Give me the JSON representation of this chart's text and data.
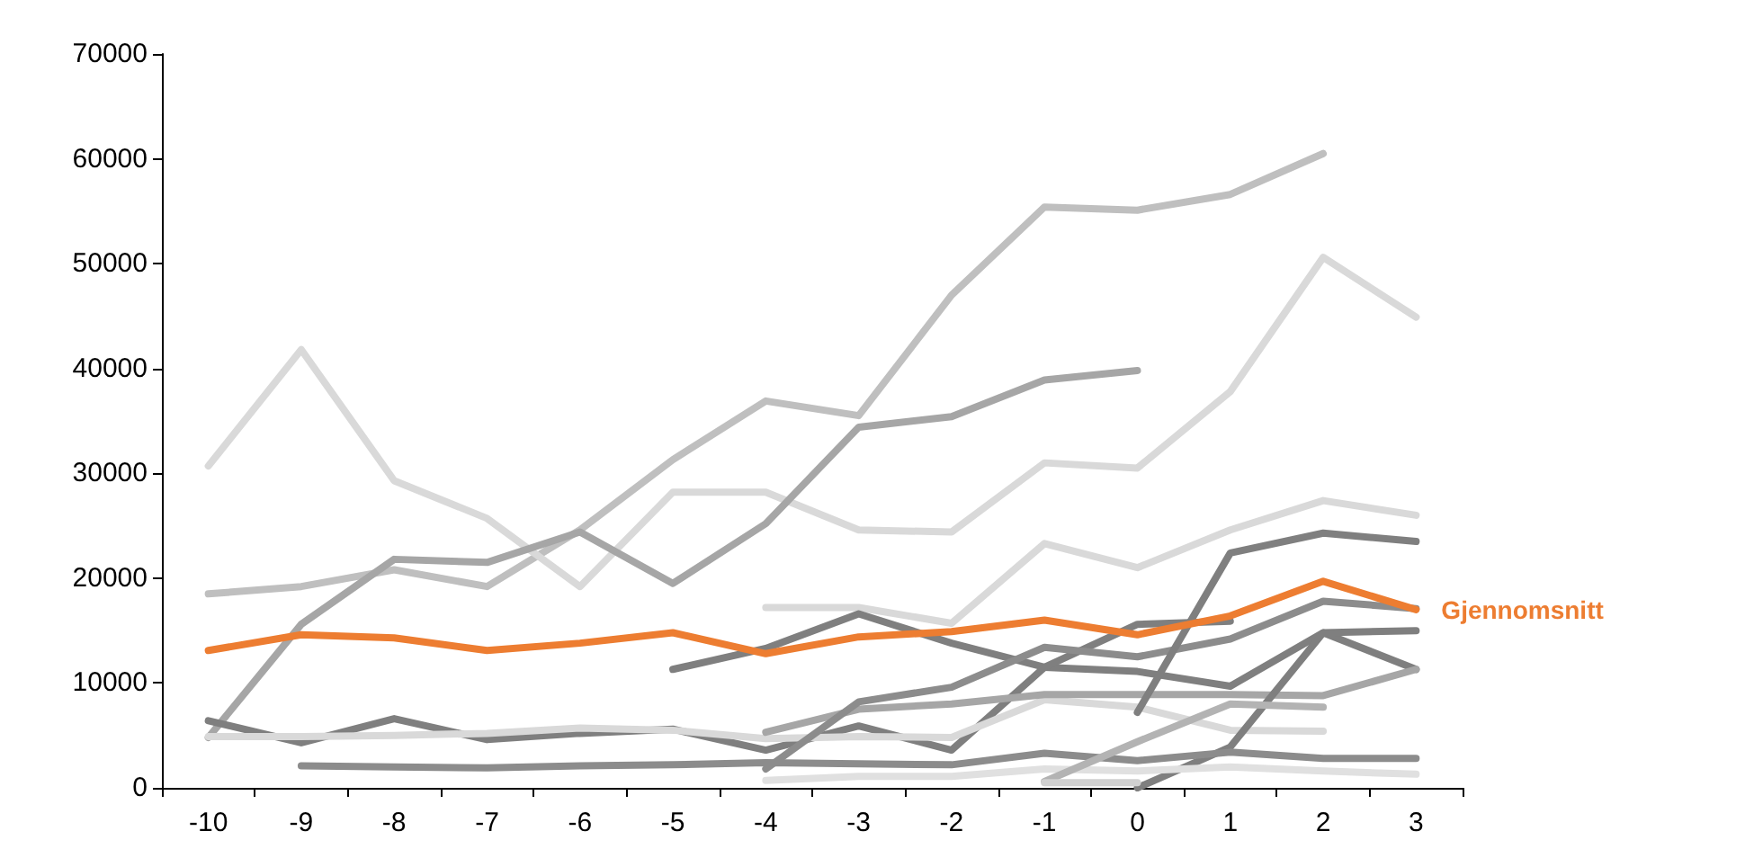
{
  "chart_data": {
    "type": "line",
    "categories": [
      "-10",
      "-9",
      "-8",
      "-7",
      "-6",
      "-5",
      "-4",
      "-3",
      "-2",
      "-1",
      "0",
      "1",
      "2",
      "3"
    ],
    "ylim": [
      0,
      70000
    ],
    "yticks": [
      0,
      10000,
      20000,
      30000,
      40000,
      50000,
      60000,
      70000
    ],
    "grid": false,
    "legend": false,
    "marker": "none",
    "line_style": "solid",
    "series": [
      {
        "color": "#bfbfbf",
        "values": [
          18500,
          19200,
          20800,
          19200,
          24600,
          31300,
          36900,
          35500,
          47000,
          55400,
          55100,
          56600,
          60500,
          null
        ]
      },
      {
        "color": "#d9d9d9",
        "values": [
          30700,
          41800,
          29300,
          25700,
          19200,
          28200,
          28200,
          24600,
          24400,
          31000,
          30500,
          37800,
          50600,
          44900
        ]
      },
      {
        "color": "#a6a6a6",
        "values": [
          4800,
          15600,
          21800,
          21500,
          24400,
          19500,
          25200,
          34400,
          35400,
          38900,
          39800,
          null,
          null,
          null
        ]
      },
      {
        "color": "#d9d9d9",
        "values": [
          null,
          null,
          null,
          null,
          null,
          null,
          17200,
          17200,
          15700,
          23300,
          21000,
          24600,
          27400,
          26000
        ]
      },
      {
        "color": "#7f7f7f",
        "values": [
          null,
          null,
          null,
          null,
          null,
          11300,
          13300,
          16600,
          13800,
          11500,
          11100,
          9700,
          14800,
          11300
        ]
      },
      {
        "color": "#7f7f7f",
        "values": [
          6400,
          4300,
          6600,
          4600,
          5200,
          5600,
          3600,
          5900,
          3600,
          11500,
          15600,
          15900,
          null,
          null
        ]
      },
      {
        "color": "#d9d9d9",
        "values": [
          4900,
          4900,
          5000,
          5200,
          5700,
          5500,
          4700,
          4900,
          4800,
          8400,
          7700,
          5500,
          5400,
          null
        ]
      },
      {
        "color": "#a6a6a6",
        "values": [
          null,
          null,
          null,
          null,
          null,
          null,
          5300,
          7500,
          8000,
          8900,
          8900,
          8900,
          8800,
          11300
        ]
      },
      {
        "color": "#8c8c8c",
        "values": [
          null,
          null,
          null,
          null,
          null,
          null,
          1800,
          8200,
          9600,
          13400,
          12500,
          14200,
          17800,
          17100
        ]
      },
      {
        "color": "#7f7f7f",
        "values": [
          null,
          null,
          null,
          null,
          null,
          null,
          null,
          null,
          null,
          null,
          0,
          3900,
          14800,
          15000
        ]
      },
      {
        "color": "#7f7f7f",
        "values": [
          null,
          null,
          null,
          null,
          null,
          null,
          null,
          null,
          null,
          null,
          7200,
          22400,
          24300,
          23500
        ]
      },
      {
        "color": "#8c8c8c",
        "values": [
          null,
          2100,
          2000,
          1900,
          2100,
          2200,
          2400,
          2300,
          2200,
          3300,
          2600,
          3400,
          2800,
          2800
        ]
      },
      {
        "color": "#e0e0e0",
        "values": [
          null,
          null,
          null,
          null,
          null,
          null,
          700,
          1100,
          1100,
          1800,
          1600,
          2000,
          1600,
          1300
        ]
      },
      {
        "color": "#b3b3b3",
        "values": [
          null,
          null,
          null,
          null,
          null,
          null,
          null,
          null,
          null,
          600,
          4400,
          8000,
          7700,
          null
        ]
      },
      {
        "color": "#d0d0d0",
        "values": [
          null,
          null,
          null,
          null,
          null,
          null,
          null,
          null,
          null,
          500,
          500,
          null,
          null,
          null
        ]
      },
      {
        "name": "Gjennomsnitt",
        "color": "#ed7d31",
        "values": [
          13100,
          14600,
          14300,
          13100,
          13800,
          14800,
          12800,
          14400,
          14900,
          16000,
          14600,
          16400,
          19700,
          17000
        ]
      }
    ]
  }
}
